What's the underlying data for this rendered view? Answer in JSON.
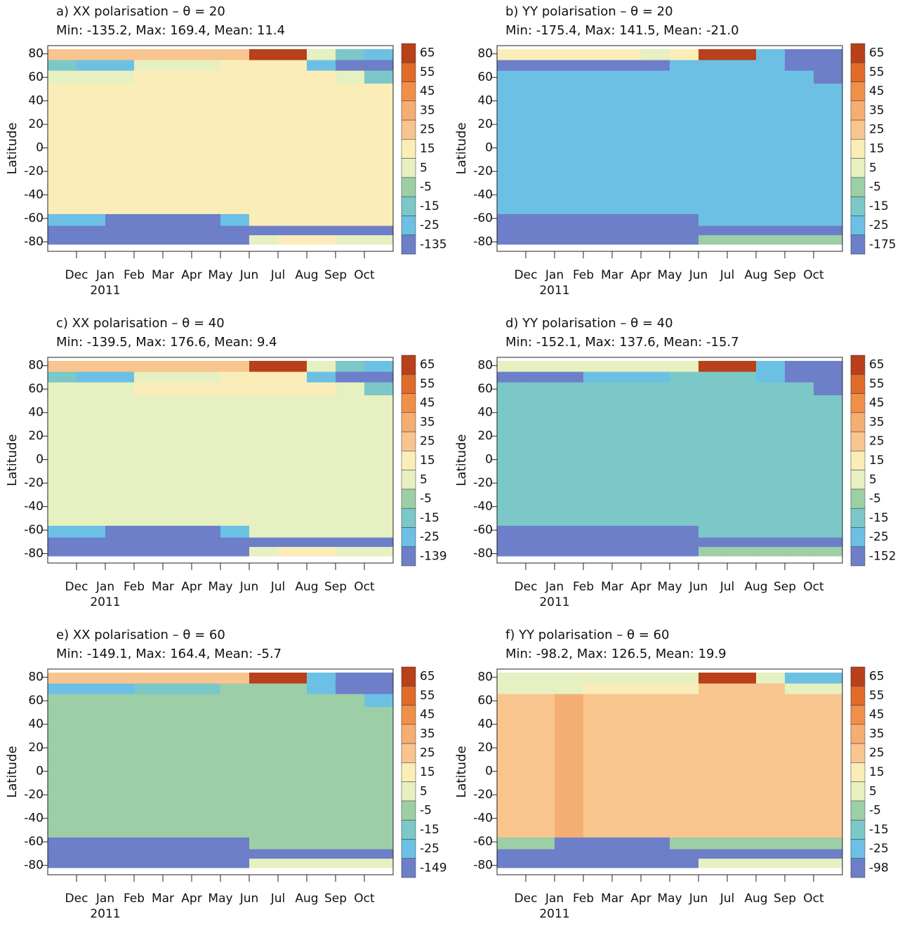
{
  "chart_data": [
    {
      "type": "heatmap",
      "title": "a) XX polarisation – θ = 20",
      "subtitle": "Min: -135.2, Max: 169.4, Mean: 11.4",
      "y_label": "Latitude",
      "categories": [
        null,
        "Dec",
        "Jan",
        "Feb",
        "Mar",
        "Apr",
        "May",
        "Jun",
        "Jul",
        "Aug",
        "Sep",
        "Oct"
      ],
      "year_label": "2011",
      "ylim": [
        -88,
        87
      ],
      "yticks": [
        -80,
        -60,
        -40,
        -20,
        0,
        20,
        40,
        60,
        80
      ],
      "lat_edges": [
        -82,
        -74,
        -66,
        -56,
        55,
        66,
        75,
        84
      ],
      "z": [
        [
          -60,
          -60,
          -60,
          -60,
          -60,
          -60,
          -60,
          5,
          20,
          20,
          10,
          10
        ],
        [
          -60,
          -60,
          -60,
          -60,
          -60,
          -60,
          -60,
          -60,
          -60,
          -60,
          -60,
          -60
        ],
        [
          -20,
          -20,
          -60,
          -60,
          -60,
          -40,
          -20,
          18,
          18,
          18,
          18,
          18
        ],
        [
          18,
          18,
          18,
          18,
          18,
          18,
          18,
          18,
          18,
          18,
          18,
          18
        ],
        [
          10,
          10,
          10,
          18,
          18,
          18,
          18,
          18,
          18,
          18,
          10,
          -10
        ],
        [
          -15,
          -20,
          -20,
          5,
          10,
          10,
          15,
          18,
          18,
          -20,
          -30,
          -60
        ],
        [
          25,
          25,
          25,
          30,
          30,
          30,
          30,
          70,
          70,
          10,
          -10,
          -20
        ]
      ],
      "levels": [
        65,
        55,
        45,
        35,
        25,
        15,
        5,
        -5,
        -15,
        -25,
        -135
      ],
      "colors": [
        "#b8401a",
        "#e06b2a",
        "#f08f4a",
        "#f5ae72",
        "#f8c58e",
        "#fbedb8",
        "#e6f0c0",
        "#9ccfa6",
        "#7cc8c8",
        "#6cc0e4",
        "#6c7fc8"
      ]
    },
    {
      "type": "heatmap",
      "title": "b) YY polarisation – θ = 20",
      "subtitle": "Min: -175.4, Max: 141.5, Mean: -21.0",
      "y_label": "Latitude",
      "categories": [
        null,
        "Dec",
        "Jan",
        "Feb",
        "Mar",
        "Apr",
        "May",
        "Jun",
        "Jul",
        "Aug",
        "Sep",
        "Oct"
      ],
      "year_label": "2011",
      "ylim": [
        -88,
        87
      ],
      "yticks": [
        -80,
        -60,
        -40,
        -20,
        0,
        20,
        40,
        60,
        80
      ],
      "lat_edges": [
        -82,
        -74,
        -66,
        -56,
        55,
        66,
        75,
        84
      ],
      "z": [
        [
          -60,
          -60,
          -60,
          -60,
          -60,
          -60,
          -60,
          -5,
          -5,
          -5,
          -5,
          -5
        ],
        [
          -60,
          -60,
          -60,
          -60,
          -60,
          -60,
          -60,
          -60,
          -60,
          -60,
          -60,
          -60
        ],
        [
          -60,
          -60,
          -60,
          -60,
          -60,
          -60,
          -60,
          -22,
          -22,
          -22,
          -22,
          -22
        ],
        [
          -22,
          -22,
          -22,
          -22,
          -22,
          -22,
          -22,
          -22,
          -22,
          -22,
          -22,
          -22
        ],
        [
          -22,
          -22,
          -22,
          -22,
          -22,
          -22,
          -22,
          -22,
          -22,
          -22,
          -22,
          -60
        ],
        [
          -60,
          -60,
          -60,
          -60,
          -60,
          -60,
          -22,
          -22,
          -22,
          -22,
          -60,
          -60
        ],
        [
          15,
          15,
          15,
          15,
          15,
          10,
          15,
          70,
          70,
          -22,
          -60,
          -60
        ]
      ],
      "levels": [
        65,
        55,
        45,
        35,
        25,
        15,
        5,
        -5,
        -15,
        -25,
        -175
      ],
      "colors": [
        "#b8401a",
        "#e06b2a",
        "#f08f4a",
        "#f5ae72",
        "#f8c58e",
        "#fbedb8",
        "#e6f0c0",
        "#9ccfa6",
        "#7cc8c8",
        "#6cc0e4",
        "#6c7fc8"
      ]
    },
    {
      "type": "heatmap",
      "title": "c) XX polarisation – θ = 40",
      "subtitle": "Min: -139.5, Max: 176.6, Mean: 9.4",
      "y_label": "Latitude",
      "categories": [
        null,
        "Dec",
        "Jan",
        "Feb",
        "Mar",
        "Apr",
        "May",
        "Jun",
        "Jul",
        "Aug",
        "Sep",
        "Oct"
      ],
      "year_label": "2011",
      "ylim": [
        -88,
        87
      ],
      "yticks": [
        -80,
        -60,
        -40,
        -20,
        0,
        20,
        40,
        60,
        80
      ],
      "lat_edges": [
        -82,
        -74,
        -66,
        -56,
        55,
        66,
        75,
        84
      ],
      "z": [
        [
          -60,
          -60,
          -60,
          -60,
          -60,
          -60,
          -60,
          5,
          20,
          20,
          10,
          10
        ],
        [
          -60,
          -60,
          -60,
          -60,
          -60,
          -60,
          -60,
          -60,
          -60,
          -60,
          -60,
          -60
        ],
        [
          -20,
          -20,
          -60,
          -60,
          -60,
          -40,
          -20,
          10,
          10,
          10,
          10,
          10
        ],
        [
          10,
          10,
          10,
          10,
          10,
          10,
          10,
          10,
          10,
          10,
          10,
          10
        ],
        [
          10,
          10,
          10,
          18,
          18,
          18,
          18,
          18,
          18,
          18,
          10,
          -10
        ],
        [
          -15,
          -20,
          -20,
          5,
          10,
          10,
          15,
          18,
          18,
          -20,
          -30,
          -60
        ],
        [
          25,
          25,
          25,
          30,
          30,
          30,
          30,
          70,
          70,
          10,
          -10,
          -20
        ]
      ],
      "levels": [
        65,
        55,
        45,
        35,
        25,
        15,
        5,
        -5,
        -15,
        -25,
        -139
      ],
      "colors": [
        "#b8401a",
        "#e06b2a",
        "#f08f4a",
        "#f5ae72",
        "#f8c58e",
        "#fbedb8",
        "#e6f0c0",
        "#9ccfa6",
        "#7cc8c8",
        "#6cc0e4",
        "#6c7fc8"
      ]
    },
    {
      "type": "heatmap",
      "title": "d) YY polarisation – θ = 40",
      "subtitle": "Min: -152.1, Max: 137.6, Mean: -15.7",
      "y_label": "Latitude",
      "categories": [
        null,
        "Dec",
        "Jan",
        "Feb",
        "Mar",
        "Apr",
        "May",
        "Jun",
        "Jul",
        "Aug",
        "Sep",
        "Oct"
      ],
      "year_label": "2011",
      "ylim": [
        -88,
        87
      ],
      "yticks": [
        -80,
        -60,
        -40,
        -20,
        0,
        20,
        40,
        60,
        80
      ],
      "lat_edges": [
        -82,
        -74,
        -66,
        -56,
        55,
        66,
        75,
        84
      ],
      "z": [
        [
          -60,
          -60,
          -60,
          -60,
          -60,
          -60,
          -60,
          -2,
          -2,
          -2,
          -2,
          -2
        ],
        [
          -60,
          -60,
          -60,
          -60,
          -60,
          -60,
          -60,
          -60,
          -60,
          -60,
          -60,
          -60
        ],
        [
          -60,
          -60,
          -60,
          -60,
          -60,
          -60,
          -60,
          -12,
          -12,
          -12,
          -12,
          -12
        ],
        [
          -12,
          -12,
          -12,
          -12,
          -12,
          -12,
          -12,
          -12,
          -12,
          -12,
          -12,
          -12
        ],
        [
          -12,
          -12,
          -12,
          -12,
          -12,
          -12,
          -12,
          -12,
          -12,
          -12,
          -12,
          -60
        ],
        [
          -60,
          -60,
          -60,
          -22,
          -22,
          -22,
          -12,
          -12,
          -12,
          -22,
          -60,
          -60
        ],
        [
          10,
          10,
          10,
          10,
          10,
          10,
          10,
          70,
          70,
          -22,
          -60,
          -60
        ]
      ],
      "levels": [
        65,
        55,
        45,
        35,
        25,
        15,
        5,
        -5,
        -15,
        -25,
        -152
      ],
      "colors": [
        "#b8401a",
        "#e06b2a",
        "#f08f4a",
        "#f5ae72",
        "#f8c58e",
        "#fbedb8",
        "#e6f0c0",
        "#9ccfa6",
        "#7cc8c8",
        "#6cc0e4",
        "#6c7fc8"
      ]
    },
    {
      "type": "heatmap",
      "title": "e) XX polarisation – θ = 60",
      "subtitle": "Min: -149.1, Max: 164.4, Mean: -5.7",
      "y_label": "Latitude",
      "categories": [
        null,
        "Dec",
        "Jan",
        "Feb",
        "Mar",
        "Apr",
        "May",
        "Jun",
        "Jul",
        "Aug",
        "Sep",
        "Oct"
      ],
      "year_label": "2011",
      "ylim": [
        -88,
        87
      ],
      "yticks": [
        -80,
        -60,
        -40,
        -20,
        0,
        20,
        40,
        60,
        80
      ],
      "lat_edges": [
        -82,
        -74,
        -66,
        -56,
        55,
        66,
        75,
        84
      ],
      "z": [
        [
          -60,
          -60,
          -60,
          -60,
          -60,
          -60,
          -60,
          10,
          10,
          10,
          10,
          10
        ],
        [
          -60,
          -60,
          -60,
          -60,
          -60,
          -60,
          -60,
          -60,
          -60,
          -60,
          -60,
          -60
        ],
        [
          -60,
          -60,
          -60,
          -60,
          -60,
          -60,
          -60,
          -2,
          -2,
          -2,
          -2,
          -2
        ],
        [
          -2,
          -2,
          -2,
          -2,
          -2,
          -2,
          -2,
          -2,
          -2,
          -2,
          -2,
          -2
        ],
        [
          -2,
          -2,
          -2,
          -2,
          -2,
          -2,
          -2,
          -2,
          -2,
          -2,
          -2,
          -22
        ],
        [
          -22,
          -22,
          -22,
          -12,
          -12,
          -12,
          -2,
          -2,
          -2,
          -22,
          -60,
          -60
        ],
        [
          25,
          25,
          25,
          25,
          25,
          25,
          25,
          70,
          70,
          -22,
          -60,
          -60
        ]
      ],
      "levels": [
        65,
        55,
        45,
        35,
        25,
        15,
        5,
        -5,
        -15,
        -25,
        -149
      ],
      "colors": [
        "#b8401a",
        "#e06b2a",
        "#f08f4a",
        "#f5ae72",
        "#f8c58e",
        "#fbedb8",
        "#e6f0c0",
        "#9ccfa6",
        "#7cc8c8",
        "#6cc0e4",
        "#6c7fc8"
      ]
    },
    {
      "type": "heatmap",
      "title": "f) YY polarisation – θ = 60",
      "subtitle": "Min: -98.2, Max: 126.5, Mean: 19.9",
      "y_label": "Latitude",
      "categories": [
        null,
        "Dec",
        "Jan",
        "Feb",
        "Mar",
        "Apr",
        "May",
        "Jun",
        "Jul",
        "Aug",
        "Sep",
        "Oct"
      ],
      "year_label": "2011",
      "ylim": [
        -88,
        87
      ],
      "yticks": [
        -80,
        -60,
        -40,
        -20,
        0,
        20,
        40,
        60,
        80
      ],
      "lat_edges": [
        -82,
        -74,
        -66,
        -56,
        55,
        66,
        75,
        84
      ],
      "z": [
        [
          -60,
          -60,
          -60,
          -60,
          -60,
          -60,
          -60,
          5,
          5,
          5,
          5,
          5
        ],
        [
          -60,
          -60,
          -60,
          -60,
          -60,
          -60,
          -60,
          -60,
          -60,
          -60,
          -60,
          -60
        ],
        [
          -5,
          -5,
          -60,
          -60,
          -60,
          -60,
          -5,
          -5,
          -5,
          -5,
          -5,
          -5
        ],
        [
          30,
          30,
          40,
          30,
          30,
          30,
          30,
          30,
          30,
          30,
          30,
          30
        ],
        [
          30,
          30,
          40,
          30,
          30,
          30,
          30,
          30,
          30,
          30,
          30,
          30
        ],
        [
          5,
          10,
          10,
          15,
          15,
          15,
          15,
          30,
          30,
          30,
          10,
          5
        ],
        [
          10,
          10,
          10,
          10,
          10,
          10,
          10,
          70,
          70,
          10,
          -25,
          -25
        ]
      ],
      "levels": [
        65,
        55,
        45,
        35,
        25,
        15,
        5,
        -5,
        -15,
        -25,
        -98
      ],
      "colors": [
        "#b8401a",
        "#e06b2a",
        "#f08f4a",
        "#f5ae72",
        "#f8c58e",
        "#fbedb8",
        "#e6f0c0",
        "#9ccfa6",
        "#7cc8c8",
        "#6cc0e4",
        "#6c7fc8"
      ]
    }
  ]
}
